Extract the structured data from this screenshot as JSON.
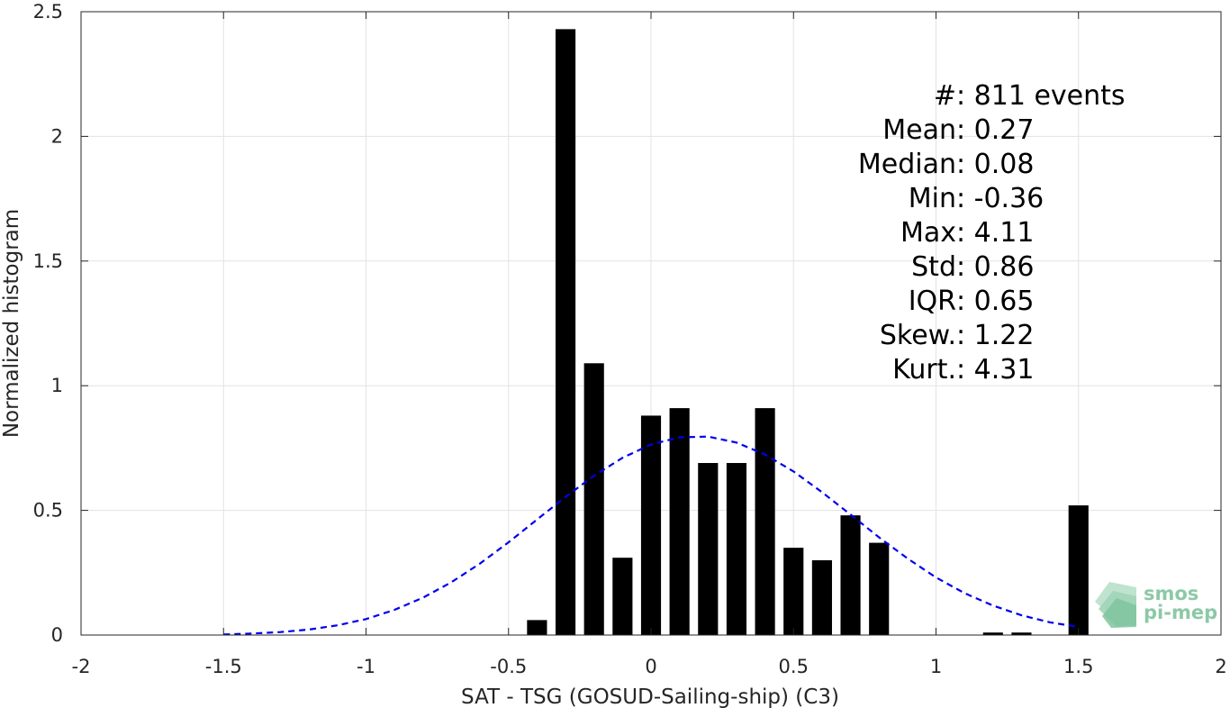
{
  "chart_data": {
    "type": "bar",
    "title": "",
    "xlabel": "SAT - TSG (GOSUD-Sailing-ship) (C3)",
    "ylabel": "Normalized histogram",
    "xlim": [
      -2,
      2
    ],
    "ylim": [
      0,
      2.5
    ],
    "grid": true,
    "bar_width": 0.07,
    "bar_color": "#000000",
    "x_ticks": [
      -2,
      -1.5,
      -1,
      -0.5,
      0,
      0.5,
      1,
      1.5,
      2
    ],
    "x_tick_labels": [
      "-2",
      "-1.5",
      "-1",
      "-0.5",
      "0",
      "0.5",
      "1",
      "1.5",
      "2"
    ],
    "y_ticks": [
      0,
      0.5,
      1,
      1.5,
      2,
      2.5
    ],
    "y_tick_labels": [
      "0",
      "0.5",
      "1",
      "1.5",
      "2",
      "2.5"
    ],
    "bars": [
      {
        "x": -0.4,
        "value": 0.06
      },
      {
        "x": -0.3,
        "value": 2.43
      },
      {
        "x": -0.2,
        "value": 1.09
      },
      {
        "x": -0.1,
        "value": 0.31
      },
      {
        "x": 0.0,
        "value": 0.88
      },
      {
        "x": 0.1,
        "value": 0.91
      },
      {
        "x": 0.2,
        "value": 0.69
      },
      {
        "x": 0.3,
        "value": 0.69
      },
      {
        "x": 0.4,
        "value": 0.91
      },
      {
        "x": 0.5,
        "value": 0.35
      },
      {
        "x": 0.6,
        "value": 0.3
      },
      {
        "x": 0.7,
        "value": 0.48
      },
      {
        "x": 0.8,
        "value": 0.37
      },
      {
        "x": 1.2,
        "value": 0.01
      },
      {
        "x": 1.3,
        "value": 0.01
      },
      {
        "x": 1.5,
        "value": 0.52
      }
    ],
    "fit_curve": {
      "style": "dashed",
      "color": "#0000ee",
      "x": [
        -1.5,
        -1.4,
        -1.3,
        -1.2,
        -1.1,
        -1.0,
        -0.9,
        -0.8,
        -0.7,
        -0.6,
        -0.5,
        -0.4,
        -0.3,
        -0.2,
        -0.1,
        0.0,
        0.1,
        0.2,
        0.3,
        0.4,
        0.5,
        0.6,
        0.7,
        0.8,
        0.9,
        1.0,
        1.1,
        1.2,
        1.3,
        1.4,
        1.5
      ],
      "y": [
        0.002,
        0.006,
        0.012,
        0.022,
        0.039,
        0.064,
        0.101,
        0.15,
        0.212,
        0.287,
        0.372,
        0.463,
        0.554,
        0.639,
        0.711,
        0.764,
        0.793,
        0.796,
        0.772,
        0.724,
        0.656,
        0.573,
        0.483,
        0.392,
        0.307,
        0.231,
        0.168,
        0.118,
        0.079,
        0.051,
        0.032
      ]
    },
    "stats": [
      {
        "label": "#  ",
        "value": ": 811 events"
      },
      {
        "label": "Mean ",
        "value": ": 0.27"
      },
      {
        "label": "Median ",
        "value": ": 0.08"
      },
      {
        "label": "Min ",
        "value": ": -0.36"
      },
      {
        "label": "Max ",
        "value": ": 4.11"
      },
      {
        "label": "Std ",
        "value": ": 0.86"
      },
      {
        "label": "IQR ",
        "value": ": 0.65"
      },
      {
        "label": "Skew. ",
        "value": ": 1.22"
      },
      {
        "label": "Kurt. ",
        "value": ": 4.31"
      }
    ]
  },
  "logo": {
    "line1": "smos",
    "line2": "pi-mep",
    "color": "#8cc9a6"
  }
}
